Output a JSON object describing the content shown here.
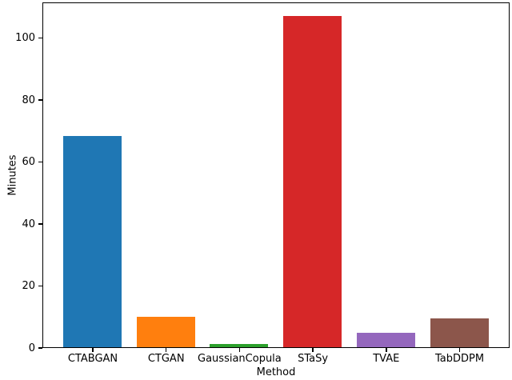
{
  "chart_data": {
    "type": "bar",
    "title": "",
    "xlabel": "Method",
    "ylabel": "Minutes",
    "categories": [
      "CTABGAN",
      "CTGAN",
      "GaussianCopula",
      "STaSy",
      "TVAE",
      "TabDDPM"
    ],
    "values": [
      68.2,
      9.8,
      1.1,
      106.8,
      4.6,
      9.2
    ],
    "colors": [
      "#1f77b4",
      "#ff7f0e",
      "#2ca02c",
      "#d62728",
      "#9467bd",
      "#8c564b"
    ],
    "yticks": [
      0,
      20,
      40,
      60,
      80,
      100
    ],
    "ylim": [
      0,
      111.5
    ],
    "grid": false,
    "legend": "none",
    "axis_color": "#000000",
    "background_color": "#ffffff"
  }
}
